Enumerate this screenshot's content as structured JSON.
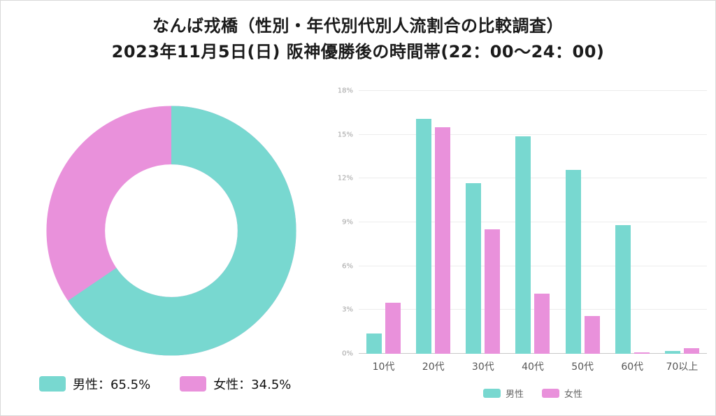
{
  "title": {
    "line1": "なんば戎橋（性別・年代別代別人流割合の比較調査）",
    "line2": "2023年11月5日(日) 阪神優勝後の時間帯(22：00〜24：00)"
  },
  "colors": {
    "male": "#78d8d0",
    "female": "#e991db"
  },
  "chart_data": [
    {
      "type": "pie",
      "donut": true,
      "labels": [
        "男性",
        "女性"
      ],
      "values": [
        65.5,
        34.5
      ],
      "legend": [
        "男性：65.5%",
        "女性：34.5%"
      ],
      "legend_position": "bottom-left",
      "start_angle": "top",
      "direction": "clockwise"
    },
    {
      "type": "bar",
      "categories": [
        "10代",
        "20代",
        "30代",
        "40代",
        "50代",
        "60代",
        "70以上"
      ],
      "series": [
        {
          "name": "男性",
          "values": [
            1.4,
            16.1,
            11.7,
            14.9,
            12.6,
            8.8,
            0.2
          ]
        },
        {
          "name": "女性",
          "values": [
            3.5,
            15.5,
            8.5,
            4.1,
            2.6,
            0.1,
            0.4
          ]
        }
      ],
      "ylim": [
        0,
        18
      ],
      "yticks": [
        "0%",
        "3%",
        "6%",
        "9%",
        "12%",
        "15%",
        "18%"
      ],
      "grid": true,
      "legend_position": "bottom"
    }
  ]
}
